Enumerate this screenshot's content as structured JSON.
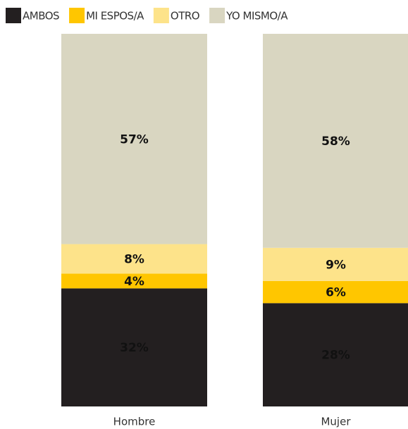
{
  "chart_data": {
    "type": "bar",
    "stacked": "percent",
    "categories": [
      "Hombre",
      "Mujer"
    ],
    "series": [
      {
        "name": "AMBOS",
        "color": "#231f20",
        "values": [
          32,
          28
        ],
        "value_labels": [
          "32%",
          "28%"
        ]
      },
      {
        "name": "MI ESPOS/A",
        "color": "#ffc600",
        "values": [
          4,
          6
        ],
        "value_labels": [
          "4%",
          "6%"
        ]
      },
      {
        "name": "OTRO",
        "color": "#fde38a",
        "values": [
          8,
          9
        ],
        "value_labels": [
          "8%",
          "9%"
        ]
      },
      {
        "name": "YO MISMO/A",
        "color": "#d9d6c1",
        "values": [
          57,
          58
        ],
        "value_labels": [
          "57%",
          "58%"
        ]
      }
    ],
    "legend": "top-left"
  }
}
